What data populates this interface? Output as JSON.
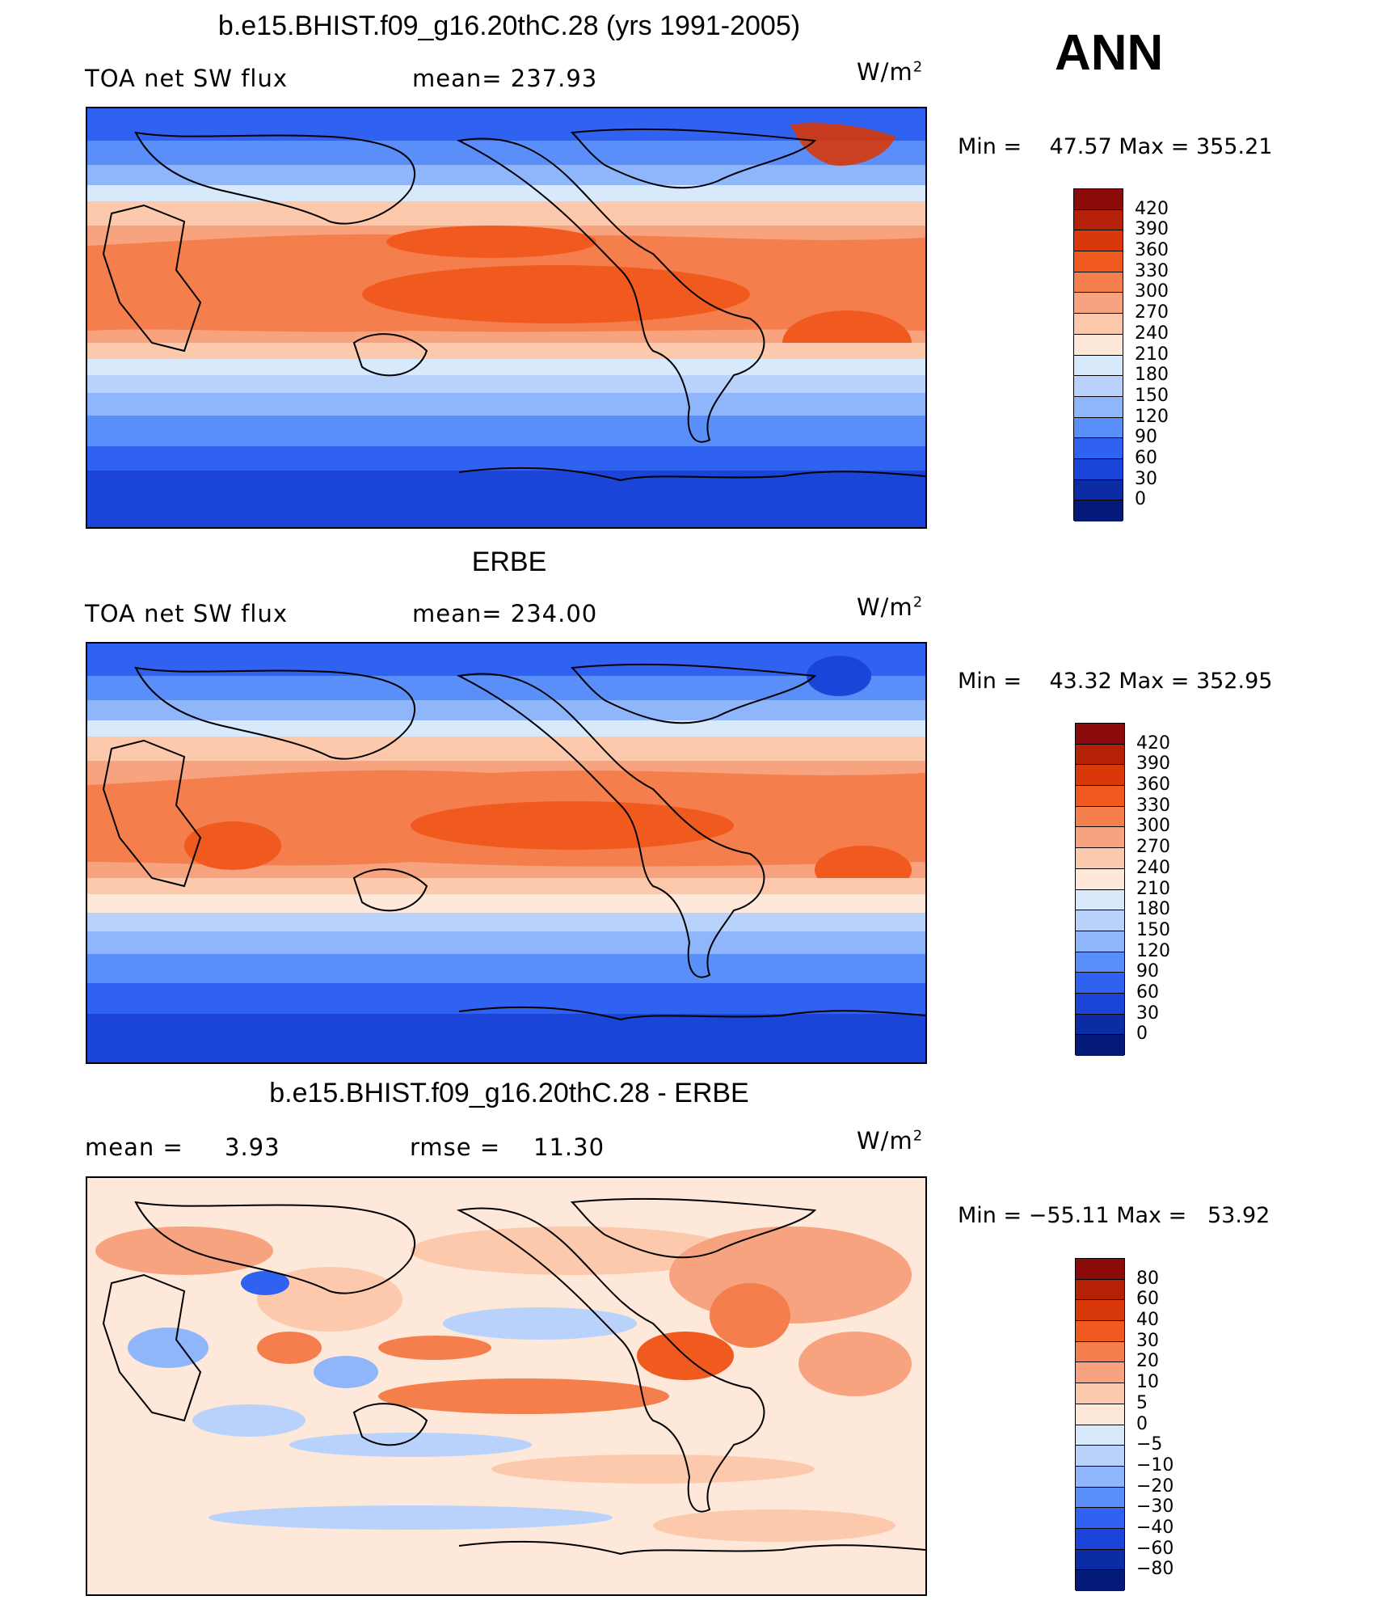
{
  "season": "ANN",
  "panels": [
    {
      "title": "b.e15.BHIST.f09_g16.20thC.28 (yrs 1991-2005)",
      "left_label": "TOA net SW flux",
      "mid_label": "mean= 237.93",
      "units": "W/m",
      "units_sup": "2",
      "min_label": "Min = ",
      "min_value": "47.57",
      "max_label": "Max = ",
      "max_value": "355.21",
      "colorbar_labels": [
        "420",
        "390",
        "360",
        "330",
        "300",
        "270",
        "240",
        "210",
        "180",
        "150",
        "120",
        "90",
        "60",
        "30",
        "0"
      ]
    },
    {
      "title": "ERBE",
      "left_label": "TOA net SW flux",
      "mid_label": "mean= 234.00",
      "units": "W/m",
      "units_sup": "2",
      "min_label": "Min = ",
      "min_value": "43.32",
      "max_label": "Max = ",
      "max_value": "352.95",
      "colorbar_labels": [
        "420",
        "390",
        "360",
        "330",
        "300",
        "270",
        "240",
        "210",
        "180",
        "150",
        "120",
        "90",
        "60",
        "30",
        "0"
      ]
    },
    {
      "title": "b.e15.BHIST.f09_g16.20thC.28 - ERBE",
      "left_label_a": "mean =",
      "left_value": "3.93",
      "mid_label_a": "rmse =",
      "mid_value": "11.30",
      "units": "W/m",
      "units_sup": "2",
      "min_label": "Min = ",
      "min_value": "−55.11",
      "max_label": "Max = ",
      "max_value": "53.92",
      "colorbar_labels": [
        "80",
        "60",
        "40",
        "30",
        "20",
        "10",
        "5",
        "0",
        "−5",
        "−10",
        "−20",
        "−30",
        "−40",
        "−60",
        "−80"
      ]
    }
  ],
  "colors": {
    "abs_scale": [
      "#8b0a0a",
      "#b52106",
      "#d8380a",
      "#f05a1f",
      "#f57e4d",
      "#f8a37f",
      "#fcc9ad",
      "#fde8da",
      "#d7e9fb",
      "#b8d2fb",
      "#8fb5fb",
      "#5a8ef8",
      "#2f62f0",
      "#1a45d8",
      "#0c2ca6",
      "#041a78"
    ],
    "diff_scale": [
      "#8b0a0a",
      "#b52106",
      "#d8380a",
      "#f05a1f",
      "#f57e4d",
      "#f8a37f",
      "#fcc9ad",
      "#fde8da",
      "#d7e9fb",
      "#b8d2fb",
      "#8fb5fb",
      "#5a8ef8",
      "#2f62f0",
      "#1a45d8",
      "#0c2ca6",
      "#041a78"
    ]
  }
}
